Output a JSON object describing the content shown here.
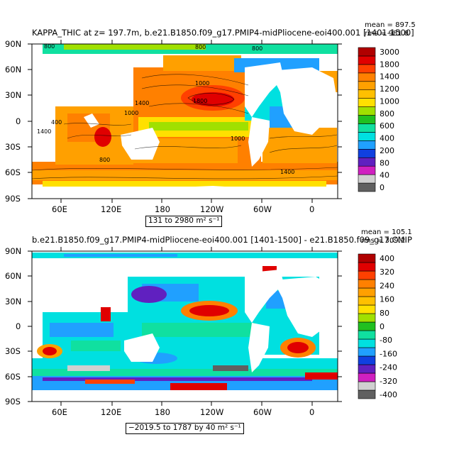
{
  "chart_data": [
    {
      "type": "heatmap",
      "title": "KAPPA_THIC at z=  197.7m, b.e21.B1850.f09_g17.PMIP4-midPliocene-eoi400.001 [1401-1500]",
      "stats": {
        "mean": "mean = 897.5",
        "rms": "rms = 981.8"
      },
      "x_ticks": [
        "60E",
        "120E",
        "180",
        "120W",
        "60W",
        "0"
      ],
      "y_ticks": [
        "90N",
        "60N",
        "30N",
        "0",
        "30S",
        "60S",
        "90S"
      ],
      "colorbar_labels": [
        "3000",
        "1800",
        "1400",
        "1200",
        "1000",
        "800",
        "600",
        "400",
        "200",
        "80",
        "40",
        "0"
      ],
      "colors": [
        "#606060",
        "#d0d0d0",
        "#d020c0",
        "#6020c0",
        "#1040e0",
        "#20a0ff",
        "#00e0e0",
        "#10e0a0",
        "#20c020",
        "#a0e000",
        "#ffe000",
        "#ffc000",
        "#ffa000",
        "#ff8000",
        "#ff4000",
        "#e00000",
        "#b00000"
      ],
      "range_text": "131 to 2980 m² s⁻¹",
      "contour_labels": [
        "800",
        "800",
        "800",
        "1000",
        "1000",
        "400",
        "1400",
        "1400",
        "1800",
        "1000",
        "800",
        "1400"
      ]
    },
    {
      "type": "heatmap",
      "title": "b.e21.B1850.f09_g17.PMIP4-midPliocene-eoi400.001 [1401-1500] - e21.B1850.f09_g17.CMIP",
      "stats": {
        "mean": "mean = 105.1",
        "rms": "rms = 309.2"
      },
      "x_ticks": [
        "60E",
        "120E",
        "180",
        "120W",
        "60W",
        "0"
      ],
      "y_ticks": [
        "90N",
        "60N",
        "30N",
        "0",
        "30S",
        "60S",
        "90S"
      ],
      "colorbar_labels": [
        "400",
        "320",
        "240",
        "160",
        "80",
        "0",
        "-80",
        "-160",
        "-240",
        "-320",
        "-400"
      ],
      "colors": [
        "#606060",
        "#d0d0d0",
        "#d020c0",
        "#6020c0",
        "#1040e0",
        "#20a0ff",
        "#00e0e0",
        "#10e0a0",
        "#20c020",
        "#a0e000",
        "#ffe000",
        "#ffc000",
        "#ffa000",
        "#ff8000",
        "#ff4000",
        "#e00000",
        "#b00000"
      ],
      "range_text": "−2019.5 to 1787 by 40 m² s⁻¹"
    }
  ]
}
